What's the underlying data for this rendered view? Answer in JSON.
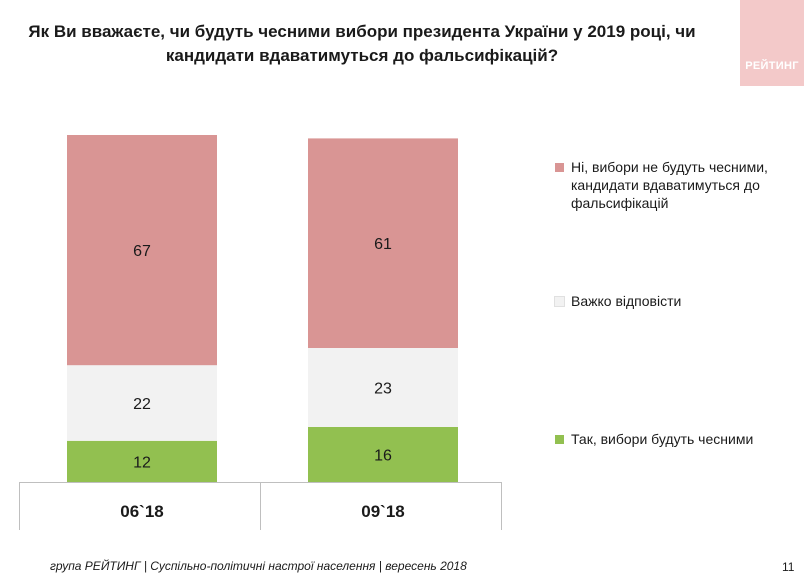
{
  "title": "Як Ви вважаєте, чи будуть чесними вибори президента України у 2019 році, чи кандидати вдаватимуться до фальсифікацій?",
  "logo": {
    "text": "РЕЙТИНГ"
  },
  "colors": {
    "no": "#d99594",
    "hard": "#f2f2f2",
    "yes": "#92c050"
  },
  "chart_data": {
    "type": "bar",
    "stacked": true,
    "categories": [
      "06`18",
      "09`18"
    ],
    "series": [
      {
        "name": "Так, вибори будуть чесними",
        "values": [
          12,
          16
        ]
      },
      {
        "name": "Важко відповісти",
        "values": [
          22,
          23
        ]
      },
      {
        "name": "Ні, вибори не будуть чесними, кандидати вдаватимуться до фальсифікацій",
        "values": [
          67,
          61
        ]
      }
    ],
    "ylim": [
      0,
      100
    ],
    "legend": "right",
    "grid": false
  },
  "legend": [
    {
      "label": "Ні, вибори не будуть чесними, кандидати вдаватимуться до фальсифікацій",
      "color": "#d99594"
    },
    {
      "label": "Важко відповісти",
      "color": "#f2f2f2"
    },
    {
      "label": "Так, вибори будуть чесними",
      "color": "#92c050"
    }
  ],
  "footer": "група РЕЙТИНГ | Суспільно-політичні настрої населення | вересень 2018",
  "page_number": "11"
}
